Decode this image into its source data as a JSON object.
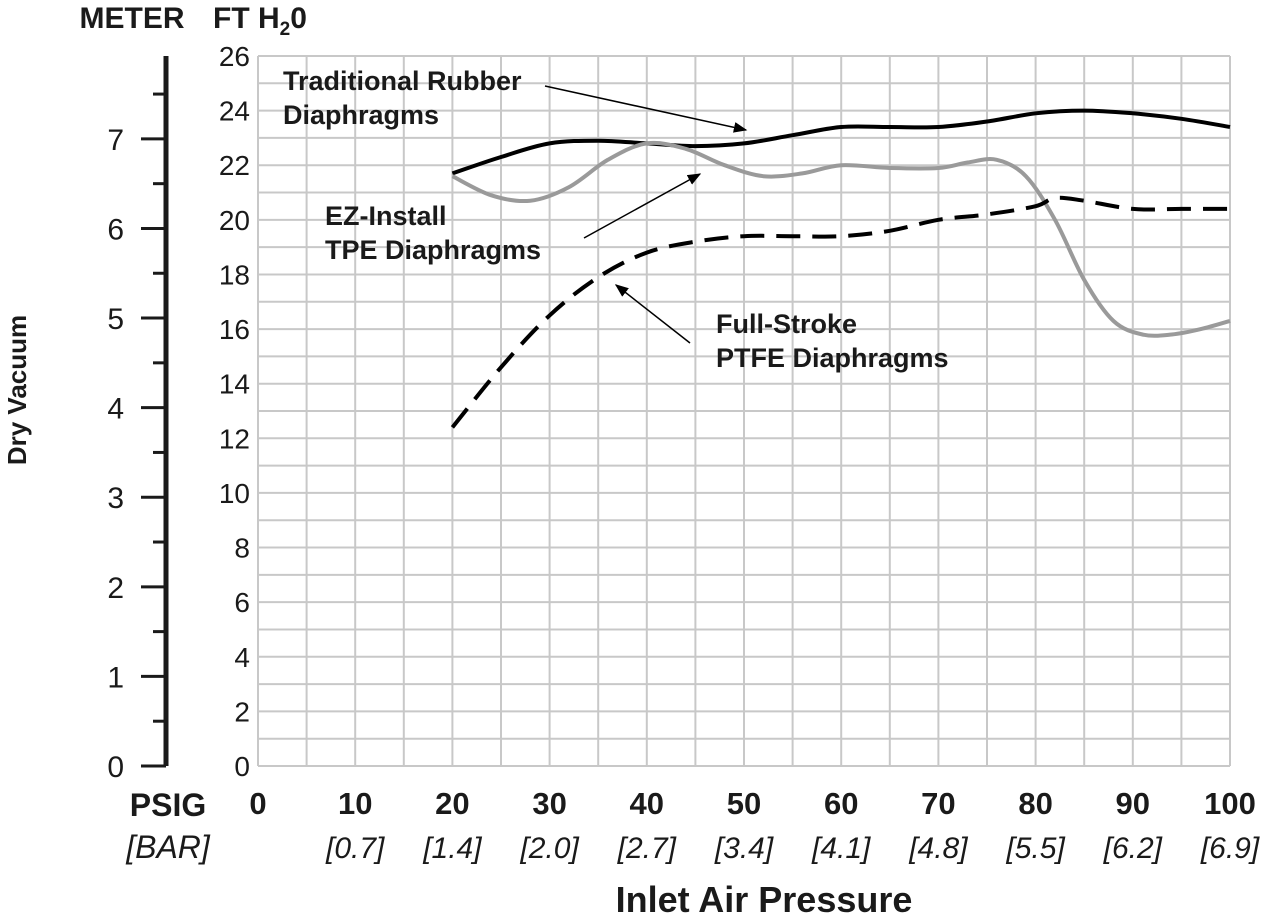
{
  "chart_data": {
    "type": "line",
    "xlabel": "Inlet Air Pressure",
    "ylabel": "Dry Vacuum",
    "x_unit_primary": "PSIG",
    "x_unit_secondary": "[BAR]",
    "y_unit_left": "METER",
    "y_unit_right_prefix": "FT H",
    "y_unit_right_sub": "2",
    "y_unit_right_suffix": "0",
    "xlim": [
      0,
      100
    ],
    "ylim": [
      0,
      26
    ],
    "left_axis_lim": [
      0,
      7.925
    ],
    "grid": true,
    "x_ticks": [
      {
        "value": 0,
        "label": "0",
        "bar": ""
      },
      {
        "value": 10,
        "label": "10",
        "bar": "[0.7]"
      },
      {
        "value": 20,
        "label": "20",
        "bar": "[1.4]"
      },
      {
        "value": 30,
        "label": "30",
        "bar": "[2.0]"
      },
      {
        "value": 40,
        "label": "40",
        "bar": "[2.7]"
      },
      {
        "value": 50,
        "label": "50",
        "bar": "[3.4]"
      },
      {
        "value": 60,
        "label": "60",
        "bar": "[4.1]"
      },
      {
        "value": 70,
        "label": "70",
        "bar": "[4.8]"
      },
      {
        "value": 80,
        "label": "80",
        "bar": "[5.5]"
      },
      {
        "value": 90,
        "label": "90",
        "bar": "[6.2]"
      },
      {
        "value": 100,
        "label": "100",
        "bar": "[6.9]"
      }
    ],
    "y_ticks": [
      {
        "value": 0,
        "label": "0"
      },
      {
        "value": 2,
        "label": "2"
      },
      {
        "value": 4,
        "label": "4"
      },
      {
        "value": 6,
        "label": "6"
      },
      {
        "value": 8,
        "label": "8"
      },
      {
        "value": 10,
        "label": "10"
      },
      {
        "value": 12,
        "label": "12"
      },
      {
        "value": 14,
        "label": "14"
      },
      {
        "value": 16,
        "label": "16"
      },
      {
        "value": 18,
        "label": "18"
      },
      {
        "value": 20,
        "label": "20"
      },
      {
        "value": 22,
        "label": "22"
      },
      {
        "value": 24,
        "label": "24"
      },
      {
        "value": 26,
        "label": "26"
      }
    ],
    "left_ticks": [
      {
        "value": 0,
        "label": "0"
      },
      {
        "value": 1,
        "label": "1"
      },
      {
        "value": 2,
        "label": "2"
      },
      {
        "value": 3,
        "label": "3"
      },
      {
        "value": 4,
        "label": "4"
      },
      {
        "value": 5,
        "label": "5"
      },
      {
        "value": 6,
        "label": "6"
      },
      {
        "value": 7,
        "label": "7"
      }
    ],
    "series": [
      {
        "name": "Traditional Rubber Diaphragms",
        "style": "solid",
        "color": "#000000",
        "x": [
          20,
          25,
          30,
          35,
          40,
          45,
          50,
          55,
          60,
          65,
          70,
          75,
          80,
          85,
          90,
          95,
          100
        ],
        "y": [
          21.7,
          22.3,
          22.8,
          22.9,
          22.8,
          22.7,
          22.8,
          23.1,
          23.4,
          23.4,
          23.4,
          23.6,
          23.9,
          24.0,
          23.9,
          23.7,
          23.4
        ]
      },
      {
        "name": "EZ-Install TPE Diaphragms",
        "style": "solid",
        "color": "#9a9a9a",
        "x": [
          20,
          24,
          28,
          32,
          36,
          40,
          44,
          48,
          52,
          56,
          60,
          65,
          70,
          73,
          76,
          79,
          82,
          85,
          88,
          91,
          94,
          97,
          100
        ],
        "y": [
          21.6,
          20.9,
          20.7,
          21.2,
          22.2,
          22.8,
          22.6,
          22.0,
          21.6,
          21.7,
          22.0,
          21.9,
          21.9,
          22.1,
          22.2,
          21.6,
          20.0,
          17.8,
          16.3,
          15.8,
          15.8,
          16.0,
          16.3
        ]
      },
      {
        "name": "Full-Stroke PTFE Diaphragms",
        "style": "dashed",
        "color": "#000000",
        "x": [
          20,
          25,
          30,
          35,
          40,
          45,
          50,
          55,
          60,
          65,
          70,
          75,
          80,
          82,
          85,
          90,
          95,
          100
        ],
        "y": [
          12.4,
          14.6,
          16.5,
          17.9,
          18.8,
          19.2,
          19.4,
          19.4,
          19.4,
          19.6,
          20.0,
          20.2,
          20.5,
          20.8,
          20.7,
          20.4,
          20.4,
          20.4
        ]
      }
    ],
    "annotations": [
      {
        "lines": [
          "Traditional Rubber",
          "Diaphragms"
        ],
        "points_to_series": 0
      },
      {
        "lines": [
          "EZ-Install",
          "TPE Diaphragms"
        ],
        "points_to_series": 1
      },
      {
        "lines": [
          "Full-Stroke",
          "PTFE Diaphragms"
        ],
        "points_to_series": 2
      }
    ]
  }
}
